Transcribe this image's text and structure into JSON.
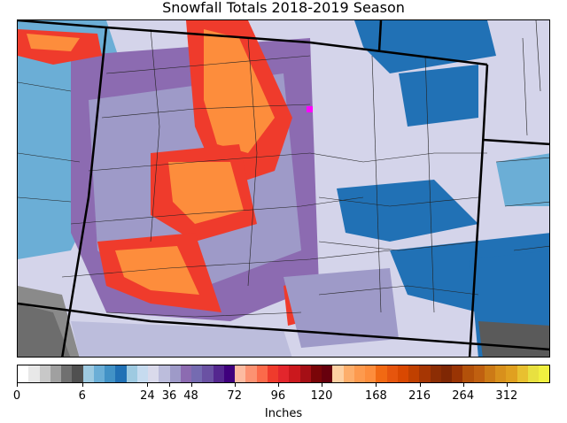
{
  "title": "Snowfall Totals 2018-2019 Season",
  "colorbar": {
    "units": "Inches",
    "ticks": [
      "0",
      "6",
      "24",
      "36",
      "48",
      "72",
      "96",
      "120",
      "168",
      "216",
      "264",
      "312"
    ],
    "tick_values": [
      0,
      6,
      24,
      36,
      48,
      72,
      96,
      120,
      168,
      216,
      264,
      312
    ],
    "colors": [
      "#ffffff",
      "#e8e8e8",
      "#c8c8c8",
      "#a0a0a0",
      "#707070",
      "#505050",
      "#9ecae1",
      "#6baed6",
      "#4292c6",
      "#2171b5",
      "#9ecae1",
      "#c6dbef",
      "#dadaeb",
      "#bcbddc",
      "#9e9ac8",
      "#8c6bb1",
      "#756bb1",
      "#6a51a3",
      "#54278f",
      "#3f007d",
      "#fcbba1",
      "#fc9272",
      "#fb6a4a",
      "#ef3b2c",
      "#e3262c",
      "#cb181d",
      "#a50f15",
      "#7a0508",
      "#67000d",
      "#fdd0a2",
      "#fdae6b",
      "#fd9a4e",
      "#fd8d3c",
      "#f16913",
      "#e6550d",
      "#d94801",
      "#c04000",
      "#a63603",
      "#8c2d04",
      "#7f2704",
      "#993404",
      "#b3510a",
      "#c06010",
      "#cc7a16",
      "#d8901c",
      "#e0a020",
      "#e8c030",
      "#e8e040",
      "#f0f040"
    ]
  },
  "map": {
    "background_color": "#d4d4ea",
    "highlight_marker_color": "#ff00ff"
  }
}
